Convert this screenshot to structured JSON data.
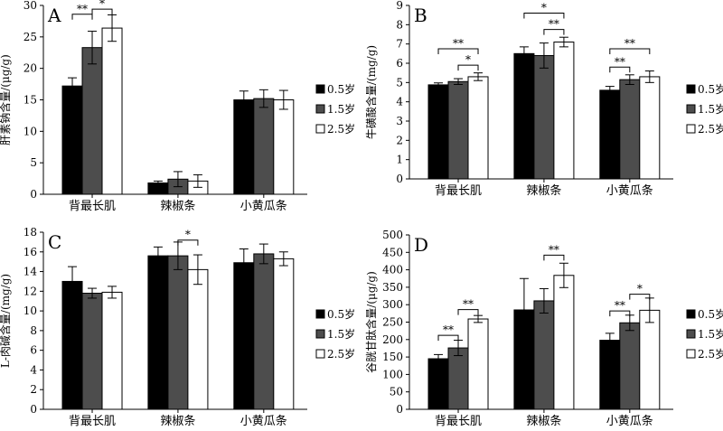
{
  "chart_data": [
    {
      "type": "bar",
      "panel_label": "A",
      "ylabel": "肝素钠含量/(μg/g)",
      "ylim": [
        0,
        30
      ],
      "yticks": [
        0,
        5,
        10,
        15,
        20,
        25,
        30
      ],
      "categories": [
        "背最长肌",
        "辣椒条",
        "小黄瓜条"
      ],
      "series": [
        {
          "name": "0.5岁",
          "color": "#000000",
          "values": [
            17.2,
            1.8,
            15.0
          ],
          "errors": [
            1.3,
            0.3,
            1.4
          ]
        },
        {
          "name": "1.5岁",
          "color": "#4d4d4d",
          "values": [
            23.3,
            2.4,
            15.2
          ],
          "errors": [
            2.6,
            1.2,
            1.4
          ]
        },
        {
          "name": "2.5岁",
          "color": "#ffffff",
          "values": [
            26.4,
            2.1,
            15.0
          ],
          "errors": [
            2.1,
            1.0,
            1.5
          ]
        }
      ],
      "significance": [
        {
          "cat": 0,
          "from": 0,
          "to": 1,
          "label": "**",
          "y": 28.6
        },
        {
          "cat": 0,
          "from": 1,
          "to": 2,
          "label": "*",
          "y": 29.4
        }
      ]
    },
    {
      "type": "bar",
      "panel_label": "B",
      "ylabel": "牛磺酸含量/(mg/g)",
      "ylim": [
        0,
        9
      ],
      "yticks": [
        0,
        1,
        2,
        3,
        4,
        5,
        6,
        7,
        8,
        9
      ],
      "categories": [
        "背最长肌",
        "辣椒条",
        "小黄瓜条"
      ],
      "series": [
        {
          "name": "0.5岁",
          "color": "#000000",
          "values": [
            4.88,
            6.5,
            4.6
          ],
          "errors": [
            0.1,
            0.35,
            0.2
          ]
        },
        {
          "name": "1.5岁",
          "color": "#4d4d4d",
          "values": [
            5.05,
            6.4,
            5.15
          ],
          "errors": [
            0.15,
            0.65,
            0.25
          ]
        },
        {
          "name": "2.5岁",
          "color": "#ffffff",
          "values": [
            5.3,
            7.1,
            5.3
          ],
          "errors": [
            0.2,
            0.25,
            0.3
          ]
        }
      ],
      "significance": [
        {
          "cat": 0,
          "from": 0,
          "to": 2,
          "label": "**",
          "y": 6.75
        },
        {
          "cat": 0,
          "from": 1,
          "to": 2,
          "label": "*",
          "y": 5.9
        },
        {
          "cat": 1,
          "from": 0,
          "to": 2,
          "label": "*",
          "y": 8.6
        },
        {
          "cat": 1,
          "from": 1,
          "to": 2,
          "label": "**",
          "y": 7.75
        },
        {
          "cat": 2,
          "from": 0,
          "to": 2,
          "label": "**",
          "y": 6.75
        },
        {
          "cat": 2,
          "from": 0,
          "to": 1,
          "label": "**",
          "y": 5.8
        }
      ]
    },
    {
      "type": "bar",
      "panel_label": "C",
      "ylabel": "L-肉碱含量/(mg/g)",
      "ylim": [
        0,
        18
      ],
      "yticks": [
        0,
        2,
        4,
        6,
        8,
        10,
        12,
        14,
        16,
        18
      ],
      "categories": [
        "背最长肌",
        "辣椒条",
        "小黄瓜条"
      ],
      "series": [
        {
          "name": "0.5岁",
          "color": "#000000",
          "values": [
            13.0,
            15.6,
            14.9
          ],
          "errors": [
            1.5,
            0.9,
            1.4
          ]
        },
        {
          "name": "1.5岁",
          "color": "#4d4d4d",
          "values": [
            11.8,
            15.6,
            15.8
          ],
          "errors": [
            0.5,
            1.4,
            1.0
          ]
        },
        {
          "name": "2.5岁",
          "color": "#ffffff",
          "values": [
            11.9,
            14.2,
            15.3
          ],
          "errors": [
            0.6,
            1.5,
            0.7
          ]
        }
      ],
      "significance": [
        {
          "cat": 1,
          "from": 1,
          "to": 2,
          "label": "*",
          "y": 17.2
        }
      ]
    },
    {
      "type": "bar",
      "panel_label": "D",
      "ylabel": "谷胱甘肽含量/(μg/g)",
      "ylim": [
        0,
        500
      ],
      "yticks": [
        0,
        50,
        100,
        150,
        200,
        250,
        300,
        350,
        400,
        450,
        500
      ],
      "categories": [
        "背最长肌",
        "辣椒条",
        "小黄瓜条"
      ],
      "series": [
        {
          "name": "0.5岁",
          "color": "#000000",
          "values": [
            145,
            285,
            198
          ],
          "errors": [
            12,
            90,
            20
          ]
        },
        {
          "name": "1.5岁",
          "color": "#4d4d4d",
          "values": [
            176,
            311,
            248
          ],
          "errors": [
            22,
            35,
            22
          ]
        },
        {
          "name": "2.5岁",
          "color": "#ffffff",
          "values": [
            259,
            384,
            284
          ],
          "errors": [
            10,
            35,
            35
          ]
        }
      ],
      "significance": [
        {
          "cat": 0,
          "from": 0,
          "to": 1,
          "label": "**",
          "y": 212
        },
        {
          "cat": 0,
          "from": 1,
          "to": 2,
          "label": "**",
          "y": 286
        },
        {
          "cat": 1,
          "from": 1,
          "to": 2,
          "label": "**",
          "y": 442
        },
        {
          "cat": 2,
          "from": 0,
          "to": 1,
          "label": "**",
          "y": 282
        },
        {
          "cat": 2,
          "from": 1,
          "to": 2,
          "label": "*",
          "y": 330
        }
      ]
    }
  ]
}
